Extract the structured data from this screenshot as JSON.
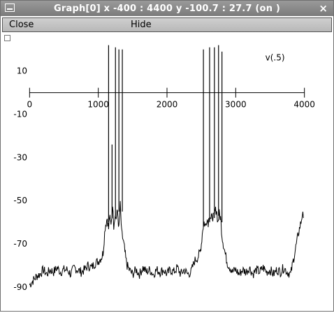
{
  "window": {
    "title": "Graph[0]  x -400 : 4400  y -100.7 : 27.7 (on )",
    "close_glyph": "×",
    "icon": "window-menu-icon"
  },
  "menu": {
    "close_label": "Close",
    "hide_label": "Hide"
  },
  "colors": {
    "titlebar": "#8a8a8a",
    "menubar": "#c4c4c4",
    "trace": "#000000"
  },
  "chart_data": {
    "type": "line",
    "series": [
      {
        "name": "v(.5)",
        "points": [
          [
            0,
            -89
          ],
          [
            50,
            -87
          ],
          [
            100,
            -85
          ],
          [
            150,
            -84
          ],
          [
            200,
            -82
          ],
          [
            250,
            -84
          ],
          [
            300,
            -82
          ],
          [
            350,
            -83
          ],
          [
            400,
            -81
          ],
          [
            450,
            -83
          ],
          [
            500,
            -82
          ],
          [
            550,
            -82
          ],
          [
            600,
            -84
          ],
          [
            650,
            -81
          ],
          [
            700,
            -82
          ],
          [
            750,
            -83
          ],
          [
            800,
            -82
          ],
          [
            850,
            -80
          ],
          [
            900,
            -81
          ],
          [
            950,
            -79
          ],
          [
            1000,
            -78
          ],
          [
            1050,
            -76
          ],
          [
            1070,
            -74
          ],
          [
            1100,
            -62
          ],
          [
            1130,
            -58
          ],
          [
            1150,
            -63
          ],
          [
            1165,
            -57
          ],
          [
            1175,
            -60
          ],
          [
            1185,
            -60
          ],
          [
            1200,
            -56
          ],
          [
            1215,
            -53
          ],
          [
            1225,
            -62
          ],
          [
            1240,
            -57
          ],
          [
            1260,
            -58
          ],
          [
            1280,
            -55
          ],
          [
            1300,
            -63
          ],
          [
            1320,
            -52
          ],
          [
            1340,
            -65
          ],
          [
            1360,
            -68
          ],
          [
            1380,
            -72
          ],
          [
            1400,
            -77
          ],
          [
            1420,
            -80
          ],
          [
            1450,
            -82
          ],
          [
            1500,
            -84
          ],
          [
            1550,
            -82
          ],
          [
            1600,
            -84
          ],
          [
            1650,
            -81
          ],
          [
            1700,
            -83
          ],
          [
            1750,
            -82
          ],
          [
            1800,
            -84
          ],
          [
            1850,
            -82
          ],
          [
            1900,
            -83
          ],
          [
            1950,
            -82
          ],
          [
            2000,
            -84
          ],
          [
            2050,
            -82
          ],
          [
            2100,
            -83
          ],
          [
            2150,
            -81
          ],
          [
            2200,
            -84
          ],
          [
            2250,
            -82
          ],
          [
            2300,
            -84
          ],
          [
            2350,
            -83
          ],
          [
            2400,
            -78
          ],
          [
            2450,
            -76
          ],
          [
            2480,
            -74
          ],
          [
            2500,
            -70
          ],
          [
            2520,
            -63
          ],
          [
            2540,
            -60
          ],
          [
            2560,
            -62
          ],
          [
            2580,
            -58
          ],
          [
            2600,
            -60
          ],
          [
            2620,
            -56
          ],
          [
            2640,
            -59
          ],
          [
            2660,
            -57
          ],
          [
            2680,
            -58
          ],
          [
            2700,
            -55
          ],
          [
            2720,
            -54
          ],
          [
            2740,
            -60
          ],
          [
            2760,
            -56
          ],
          [
            2780,
            -58
          ],
          [
            2800,
            -66
          ],
          [
            2820,
            -70
          ],
          [
            2850,
            -75
          ],
          [
            2880,
            -79
          ],
          [
            2920,
            -81
          ],
          [
            2950,
            -83
          ],
          [
            3000,
            -82
          ],
          [
            3050,
            -84
          ],
          [
            3100,
            -82
          ],
          [
            3150,
            -83
          ],
          [
            3200,
            -81
          ],
          [
            3250,
            -84
          ],
          [
            3300,
            -82
          ],
          [
            3350,
            -83
          ],
          [
            3400,
            -81
          ],
          [
            3450,
            -83
          ],
          [
            3500,
            -82
          ],
          [
            3550,
            -84
          ],
          [
            3600,
            -82
          ],
          [
            3650,
            -83
          ],
          [
            3700,
            -81
          ],
          [
            3750,
            -83
          ],
          [
            3800,
            -84
          ],
          [
            3830,
            -79
          ],
          [
            3860,
            -74
          ],
          [
            3890,
            -69
          ],
          [
            3920,
            -64
          ],
          [
            3950,
            -60
          ],
          [
            3970,
            -56
          ],
          [
            3985,
            -58
          ]
        ],
        "spikes": [
          {
            "t": 1150,
            "base": -60,
            "peak": 22
          },
          {
            "t": 1200,
            "base": -58,
            "peak": -24
          },
          {
            "t": 1250,
            "base": -57,
            "peak": 21
          },
          {
            "t": 1300,
            "base": -55,
            "peak": 20
          },
          {
            "t": 1350,
            "base": -55,
            "peak": 20
          },
          {
            "t": 2530,
            "base": -62,
            "peak": 20
          },
          {
            "t": 2620,
            "base": -60,
            "peak": 21
          },
          {
            "t": 2690,
            "base": -58,
            "peak": 21
          },
          {
            "t": 2750,
            "base": -57,
            "peak": 22
          },
          {
            "t": 2800,
            "base": -60,
            "peak": 19
          }
        ]
      }
    ],
    "x_ticks": [
      "0",
      "1000",
      "2000",
      "3000",
      "4000"
    ],
    "x_tick_values": [
      0,
      1000,
      2000,
      3000,
      4000
    ],
    "y_ticks": [
      "10",
      "-10",
      "-30",
      "-50",
      "-70",
      "-90"
    ],
    "y_tick_values": [
      10,
      -10,
      -30,
      -50,
      -70,
      -90
    ],
    "xlim": [
      -400,
      4400
    ],
    "ylim": [
      -100.7,
      27.7
    ],
    "legend_label": "v(.5)",
    "x_axis_at_y": 0,
    "grid": false
  }
}
